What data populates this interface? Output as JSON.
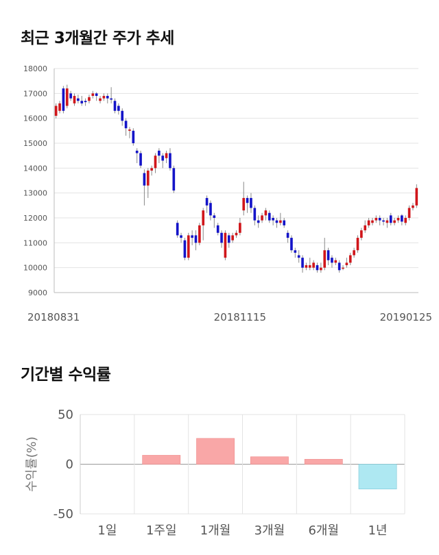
{
  "titles": {
    "price_trend": "최근 3개월간 주가 추세",
    "returns": "기간별 수익률"
  },
  "colors": {
    "up": "#d0161b",
    "down": "#1414c8",
    "positive_bar": "#f9a7a7",
    "negative_bar": "#aee8f2",
    "grid": "#e3e3e3"
  },
  "chart_data": [
    {
      "type": "candlestick",
      "title": "최근 3개월간 주가 추세",
      "ylim": [
        9000,
        18000
      ],
      "yticks": [
        9000,
        10000,
        11000,
        12000,
        13000,
        14000,
        15000,
        16000,
        17000,
        18000
      ],
      "x_tick_labels": [
        "20180831",
        "20181115",
        "20190125"
      ],
      "x_tick_index": [
        0,
        50,
        99
      ],
      "grid": "horizontal",
      "candles": [
        [
          16100,
          16500,
          16600,
          16000
        ],
        [
          16300,
          16600,
          16700,
          16200
        ],
        [
          17200,
          16300,
          17300,
          16200
        ],
        [
          16500,
          17200,
          17350,
          16400
        ],
        [
          17000,
          16800,
          17100,
          16700
        ],
        [
          16600,
          16900,
          17000,
          16500
        ],
        [
          16800,
          16700,
          16950,
          16600
        ],
        [
          16700,
          16600,
          16900,
          16500
        ],
        [
          16700,
          16650,
          16800,
          16500
        ],
        [
          16700,
          16850,
          16950,
          16600
        ],
        [
          16900,
          17000,
          17100,
          16800
        ],
        [
          17000,
          16900,
          17050,
          16700
        ],
        [
          16700,
          16800,
          16900,
          16600
        ],
        [
          16800,
          16900,
          17000,
          16700
        ],
        [
          16900,
          16800,
          17000,
          16600
        ],
        [
          16800,
          16750,
          17250,
          16600
        ],
        [
          16700,
          16300,
          16800,
          16200
        ],
        [
          16500,
          16300,
          16600,
          16150
        ],
        [
          16300,
          15900,
          16400,
          15700
        ],
        [
          15900,
          15600,
          16000,
          15300
        ],
        [
          15500,
          15550,
          15650,
          15200
        ],
        [
          15500,
          15000,
          15600,
          14900
        ],
        [
          14700,
          14600,
          14800,
          14200
        ],
        [
          14600,
          14100,
          14700,
          14000
        ],
        [
          13800,
          13300,
          13950,
          12500
        ],
        [
          13300,
          13900,
          14000,
          12800
        ],
        [
          13900,
          14000,
          14100,
          13700
        ],
        [
          14000,
          14500,
          14600,
          13800
        ],
        [
          14700,
          14500,
          14800,
          14200
        ],
        [
          14500,
          14300,
          14600,
          14000
        ],
        [
          14400,
          14600,
          14700,
          14200
        ],
        [
          14600,
          14000,
          14800,
          13900
        ],
        [
          14000,
          13100,
          14100,
          13000
        ],
        [
          11800,
          11300,
          11900,
          11200
        ],
        [
          11300,
          11200,
          11400,
          11000
        ],
        [
          11100,
          10400,
          11200,
          10300
        ],
        [
          10400,
          11300,
          11400,
          10300
        ],
        [
          11300,
          11200,
          11500,
          10900
        ],
        [
          11300,
          11000,
          11500,
          10700
        ],
        [
          11000,
          11700,
          11800,
          10900
        ],
        [
          11700,
          12300,
          12400,
          11100
        ],
        [
          12800,
          12500,
          12900,
          12200
        ],
        [
          12600,
          12100,
          12700,
          11900
        ],
        [
          12100,
          12000,
          12200,
          11600
        ],
        [
          11700,
          11400,
          11800,
          11300
        ],
        [
          11400,
          11000,
          11500,
          10800
        ],
        [
          10400,
          11400,
          11500,
          10300
        ],
        [
          11300,
          11000,
          11400,
          10800
        ],
        [
          11100,
          11300,
          11400,
          11000
        ],
        [
          11300,
          11400,
          11500,
          11200
        ],
        [
          11400,
          11800,
          12000,
          11300
        ],
        [
          12300,
          12800,
          13450,
          12100
        ],
        [
          12800,
          12600,
          12900,
          12200
        ],
        [
          12800,
          12400,
          13000,
          12200
        ],
        [
          12400,
          11900,
          12500,
          11700
        ],
        [
          11900,
          11800,
          12100,
          11600
        ],
        [
          11900,
          12100,
          12200,
          11800
        ],
        [
          12100,
          12300,
          12400,
          11900
        ],
        [
          12200,
          11900,
          12300,
          11800
        ],
        [
          12000,
          11900,
          12100,
          11700
        ],
        [
          11900,
          11800,
          12000,
          11600
        ],
        [
          11800,
          11900,
          12200,
          11700
        ],
        [
          11900,
          11700,
          12000,
          11600
        ],
        [
          11400,
          11200,
          11500,
          11000
        ],
        [
          11200,
          10700,
          11300,
          10600
        ],
        [
          10700,
          10600,
          10800,
          10400
        ],
        [
          10500,
          10400,
          10700,
          10200
        ],
        [
          10400,
          10000,
          10500,
          9800
        ],
        [
          10000,
          10100,
          10200,
          9900
        ],
        [
          10000,
          10100,
          10400,
          9900
        ],
        [
          10000,
          10200,
          10300,
          9900
        ],
        [
          10100,
          9900,
          10200,
          9800
        ],
        [
          9900,
          10000,
          10200,
          9800
        ],
        [
          10000,
          10700,
          11200,
          9900
        ],
        [
          10700,
          10300,
          10800,
          10100
        ],
        [
          10400,
          10200,
          10500,
          10000
        ],
        [
          10200,
          10300,
          10400,
          10100
        ],
        [
          10200,
          9900,
          10300,
          9800
        ],
        [
          10000,
          10000,
          10100,
          9900
        ],
        [
          10100,
          10200,
          10400,
          10000
        ],
        [
          10200,
          10500,
          10600,
          10100
        ],
        [
          10500,
          10700,
          10800,
          10400
        ],
        [
          10700,
          11200,
          11300,
          10600
        ],
        [
          11200,
          11500,
          11600,
          11100
        ],
        [
          11500,
          11700,
          11900,
          11400
        ],
        [
          11700,
          11900,
          12000,
          11600
        ],
        [
          11800,
          11900,
          12000,
          11700
        ],
        [
          11900,
          12000,
          12100,
          11800
        ],
        [
          12000,
          11900,
          12100,
          11700
        ],
        [
          11900,
          11850,
          12000,
          11700
        ],
        [
          11800,
          11900,
          12000,
          11600
        ],
        [
          12100,
          11800,
          12200,
          11700
        ],
        [
          11800,
          11900,
          12000,
          11700
        ],
        [
          11900,
          12000,
          12100,
          11800
        ],
        [
          12100,
          11850,
          12150,
          11700
        ],
        [
          11800,
          12000,
          12100,
          11700
        ],
        [
          12000,
          12400,
          12500,
          11900
        ],
        [
          12400,
          12500,
          12600,
          12300
        ],
        [
          12500,
          13200,
          13350,
          12400
        ]
      ]
    },
    {
      "type": "bar",
      "title": "기간별 수익률",
      "ylabel": "수익률(%)",
      "categories": [
        "1일",
        "1주일",
        "1개월",
        "3개월",
        "6개월",
        "1년"
      ],
      "values": [
        0,
        9,
        26,
        7.5,
        5,
        -25
      ],
      "ylim": [
        -50,
        50
      ],
      "yticks": [
        -50,
        0,
        50
      ],
      "grid": "both"
    }
  ]
}
